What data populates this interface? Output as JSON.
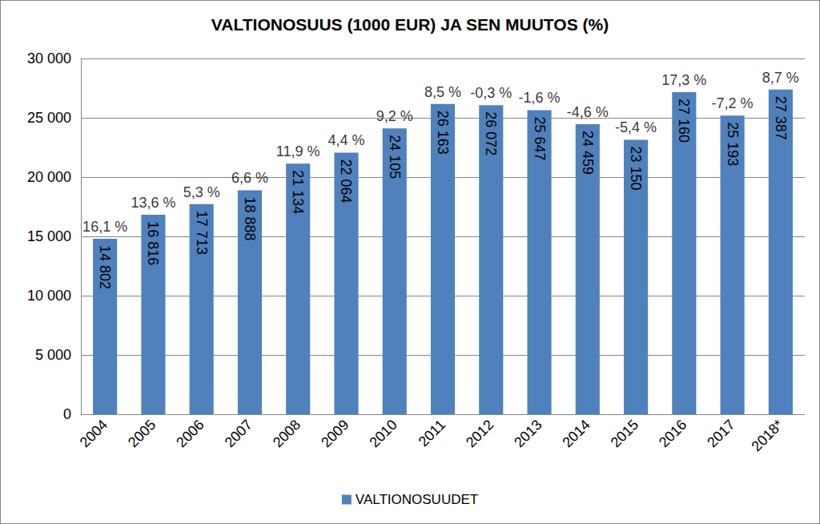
{
  "chart_data": {
    "type": "bar",
    "title": "VALTIONOSUUS (1000 EUR) JA SEN MUUTOS (%)",
    "categories": [
      "2004",
      "2005",
      "2006",
      "2007",
      "2008",
      "2009",
      "2010",
      "2011",
      "2012",
      "2013",
      "2014",
      "2015",
      "2016",
      "2017",
      "2018*"
    ],
    "series": [
      {
        "name": "VALTIONOSUUDET",
        "color": "#4f81bd",
        "values": [
          14802,
          16816,
          17713,
          18888,
          21134,
          22064,
          24105,
          26163,
          26072,
          25647,
          24459,
          23150,
          27160,
          25193,
          27387
        ],
        "value_labels": [
          "14 802",
          "16 816",
          "17 713",
          "18 888",
          "21 134",
          "22 064",
          "24 105",
          "26 163",
          "26 072",
          "25 647",
          "24 459",
          "23 150",
          "27 160",
          "25 193",
          "27 387"
        ],
        "changes": [
          16.1,
          13.6,
          5.3,
          6.6,
          11.9,
          4.4,
          9.2,
          8.5,
          -0.3,
          -1.6,
          -4.6,
          -5.4,
          17.3,
          -7.2,
          8.7
        ],
        "change_labels": [
          "16,1 %",
          "13,6 %",
          "5,3 %",
          "6,6 %",
          "11,9 %",
          "4,4 %",
          "9,2 %",
          "8,5 %",
          "-0,3 %",
          "-1,6 %",
          "-4,6 %",
          "-5,4 %",
          "17,3 %",
          "-7,2 %",
          "8,7 %"
        ]
      }
    ],
    "ylim": [
      0,
      30000
    ],
    "yticks": [
      0,
      {
        "value": 5000,
        "label": "5 000"
      },
      {
        "value": 10000,
        "label": "10 000"
      },
      {
        "value": 15000,
        "label": "15 000"
      },
      {
        "value": 20000,
        "label": "20 000"
      },
      {
        "value": 25000,
        "label": "25 000"
      },
      {
        "value": 30000,
        "label": "30 000"
      }
    ],
    "grid": true,
    "legend": "bottom",
    "data_labels": true
  }
}
